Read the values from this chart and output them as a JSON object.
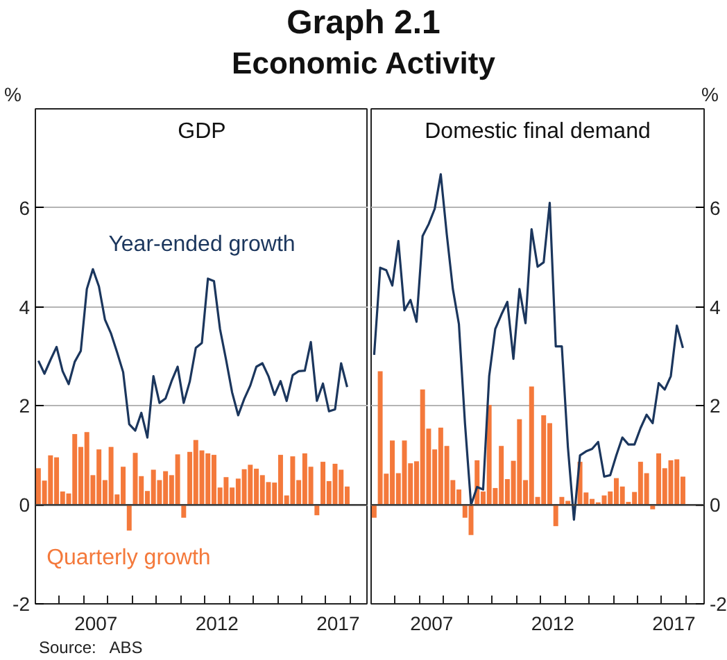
{
  "chart_data": [
    {
      "type": "bar",
      "title": "Graph 2.1",
      "subtitle": "Economic Activity",
      "annotations": [
        "GDP",
        "Source:   ABS"
      ],
      "ylabel": "%",
      "x": [
        2005.125,
        2005.375,
        2005.625,
        2005.875,
        2006.125,
        2006.375,
        2006.625,
        2006.875,
        2007.125,
        2007.375,
        2007.625,
        2007.875,
        2008.125,
        2008.375,
        2008.625,
        2008.875,
        2009.125,
        2009.375,
        2009.625,
        2009.875,
        2010.125,
        2010.375,
        2010.625,
        2010.875,
        2011.125,
        2011.375,
        2011.625,
        2011.875,
        2012.125,
        2012.375,
        2012.625,
        2012.875,
        2013.125,
        2013.375,
        2013.625,
        2013.875,
        2014.125,
        2014.375,
        2014.625,
        2014.875,
        2015.125,
        2015.375,
        2015.625,
        2015.875,
        2016.125,
        2016.375,
        2016.625,
        2016.875,
        2017.125,
        2017.375,
        2017.625,
        2017.875
      ],
      "series": [
        {
          "name": "Quarterly growth",
          "color": "#f4793b",
          "values": [
            0.74,
            0.49,
            1.0,
            0.96,
            0.27,
            0.23,
            1.43,
            1.17,
            1.47,
            0.6,
            1.12,
            0.5,
            1.17,
            0.21,
            0.77,
            -0.52,
            1.05,
            0.58,
            0.28,
            0.71,
            0.5,
            0.68,
            0.6,
            1.02,
            -0.26,
            1.07,
            1.31,
            1.1,
            1.04,
            1.01,
            0.35,
            0.56,
            0.35,
            0.53,
            0.72,
            0.81,
            0.73,
            0.6,
            0.46,
            0.45,
            1.01,
            0.19,
            0.98,
            0.5,
            1.04,
            0.77,
            -0.21,
            0.87,
            0.48,
            0.83,
            0.71,
            0.37
          ]
        },
        {
          "name": "Year-ended growth",
          "type": "line",
          "color": "#1b365d",
          "values": [
            2.91,
            2.65,
            2.93,
            3.19,
            2.7,
            2.44,
            2.89,
            3.11,
            4.36,
            4.76,
            4.41,
            3.74,
            3.46,
            3.08,
            2.68,
            1.63,
            1.5,
            1.86,
            1.36,
            2.6,
            2.06,
            2.15,
            2.5,
            2.79,
            2.06,
            2.49,
            3.17,
            3.27,
            4.57,
            4.52,
            3.55,
            2.93,
            2.27,
            1.81,
            2.14,
            2.41,
            2.79,
            2.86,
            2.6,
            2.22,
            2.5,
            2.1,
            2.62,
            2.7,
            2.71,
            3.29,
            2.1,
            2.45,
            1.89,
            1.93,
            2.86,
            2.38
          ]
        }
      ],
      "xlim": [
        2005,
        2018.75
      ],
      "xticks": [
        {
          "value": 2005,
          "label": null
        },
        {
          "value": 2006,
          "label": null
        },
        {
          "value": 2007,
          "label": null
        },
        {
          "value": 2008,
          "label": null
        },
        {
          "value": 2009,
          "label": null
        },
        {
          "value": 2010,
          "label": null
        },
        {
          "value": 2011,
          "label": null
        },
        {
          "value": 2012,
          "label": null
        },
        {
          "value": 2013,
          "label": null
        },
        {
          "value": 2014,
          "label": null
        },
        {
          "value": 2015,
          "label": null
        },
        {
          "value": 2016,
          "label": null
        },
        {
          "value": 2017,
          "label": null
        },
        {
          "value": 2018,
          "label": null
        },
        {
          "value": 2007.5,
          "label": "2007"
        },
        {
          "value": 2012.5,
          "label": "2012"
        },
        {
          "value": 2017.5,
          "label": "2017"
        }
      ],
      "ylim": [
        -2,
        8
      ],
      "yticks": [
        -2,
        0,
        2,
        4,
        6
      ],
      "grid": "y",
      "legend": false,
      "ref_lines": [
        {
          "axis": "y",
          "value": 0,
          "color": "#404040"
        }
      ]
    },
    {
      "type": "bar",
      "annotations": [
        "Domestic final demand"
      ],
      "ylabel": "%",
      "x": [
        2005.125,
        2005.375,
        2005.625,
        2005.875,
        2006.125,
        2006.375,
        2006.625,
        2006.875,
        2007.125,
        2007.375,
        2007.625,
        2007.875,
        2008.125,
        2008.375,
        2008.625,
        2008.875,
        2009.125,
        2009.375,
        2009.625,
        2009.875,
        2010.125,
        2010.375,
        2010.625,
        2010.875,
        2011.125,
        2011.375,
        2011.625,
        2011.875,
        2012.125,
        2012.375,
        2012.625,
        2012.875,
        2013.125,
        2013.375,
        2013.625,
        2013.875,
        2014.125,
        2014.375,
        2014.625,
        2014.875,
        2015.125,
        2015.375,
        2015.625,
        2015.875,
        2016.125,
        2016.375,
        2016.625,
        2016.875,
        2017.125,
        2017.375,
        2017.625,
        2017.875
      ],
      "series": [
        {
          "color": "#f4793b",
          "values": [
            -0.26,
            2.7,
            0.63,
            1.3,
            0.64,
            1.3,
            0.84,
            0.88,
            2.33,
            1.54,
            1.12,
            1.56,
            1.19,
            0.5,
            0.31,
            -0.26,
            -0.61,
            0.9,
            0.27,
            2.02,
            0.34,
            1.19,
            0.52,
            0.89,
            1.73,
            0.5,
            2.39,
            0.16,
            1.81,
            1.65,
            -0.43,
            0.16,
            0.08,
            null,
            0.87,
            0.25,
            0.12,
            0.05,
            0.19,
            0.27,
            0.54,
            0.37,
            0.06,
            0.26,
            0.87,
            0.64,
            -0.09,
            1.04,
            0.74,
            0.9,
            0.92,
            0.57
          ]
        },
        {
          "type": "line",
          "color": "#1b365d",
          "values": [
            3.03,
            4.79,
            4.74,
            4.43,
            5.33,
            3.93,
            4.14,
            3.7,
            5.43,
            5.67,
            5.98,
            6.68,
            5.46,
            4.36,
            3.65,
            1.65,
            0.0,
            0.36,
            0.31,
            2.6,
            3.55,
            3.84,
            4.1,
            2.95,
            4.36,
            3.67,
            5.57,
            4.81,
            4.9,
            6.1,
            3.2,
            3.2,
            1.17,
            -0.3,
            1.0,
            1.08,
            1.13,
            1.27,
            0.57,
            0.6,
            1.0,
            1.36,
            1.22,
            1.22,
            1.55,
            1.82,
            1.65,
            2.46,
            2.33,
            2.6,
            3.62,
            3.17
          ]
        }
      ],
      "xlim": [
        2005,
        2018.75
      ],
      "xticks": [
        {
          "value": 2005,
          "label": null
        },
        {
          "value": 2006,
          "label": null
        },
        {
          "value": 2007,
          "label": null
        },
        {
          "value": 2008,
          "label": null
        },
        {
          "value": 2009,
          "label": null
        },
        {
          "value": 2010,
          "label": null
        },
        {
          "value": 2011,
          "label": null
        },
        {
          "value": 2012,
          "label": null
        },
        {
          "value": 2013,
          "label": null
        },
        {
          "value": 2014,
          "label": null
        },
        {
          "value": 2015,
          "label": null
        },
        {
          "value": 2016,
          "label": null
        },
        {
          "value": 2017,
          "label": null
        },
        {
          "value": 2018,
          "label": null
        },
        {
          "value": 2007.5,
          "label": "2007"
        },
        {
          "value": 2012.5,
          "label": "2012"
        },
        {
          "value": 2017.5,
          "label": "2017"
        }
      ],
      "ylim": [
        -2,
        8
      ],
      "yticks": [
        -2,
        0,
        2,
        4,
        6
      ],
      "grid": "y",
      "legend": false,
      "ref_lines": [
        {
          "axis": "y",
          "value": 0,
          "color": "#404040"
        }
      ]
    }
  ]
}
